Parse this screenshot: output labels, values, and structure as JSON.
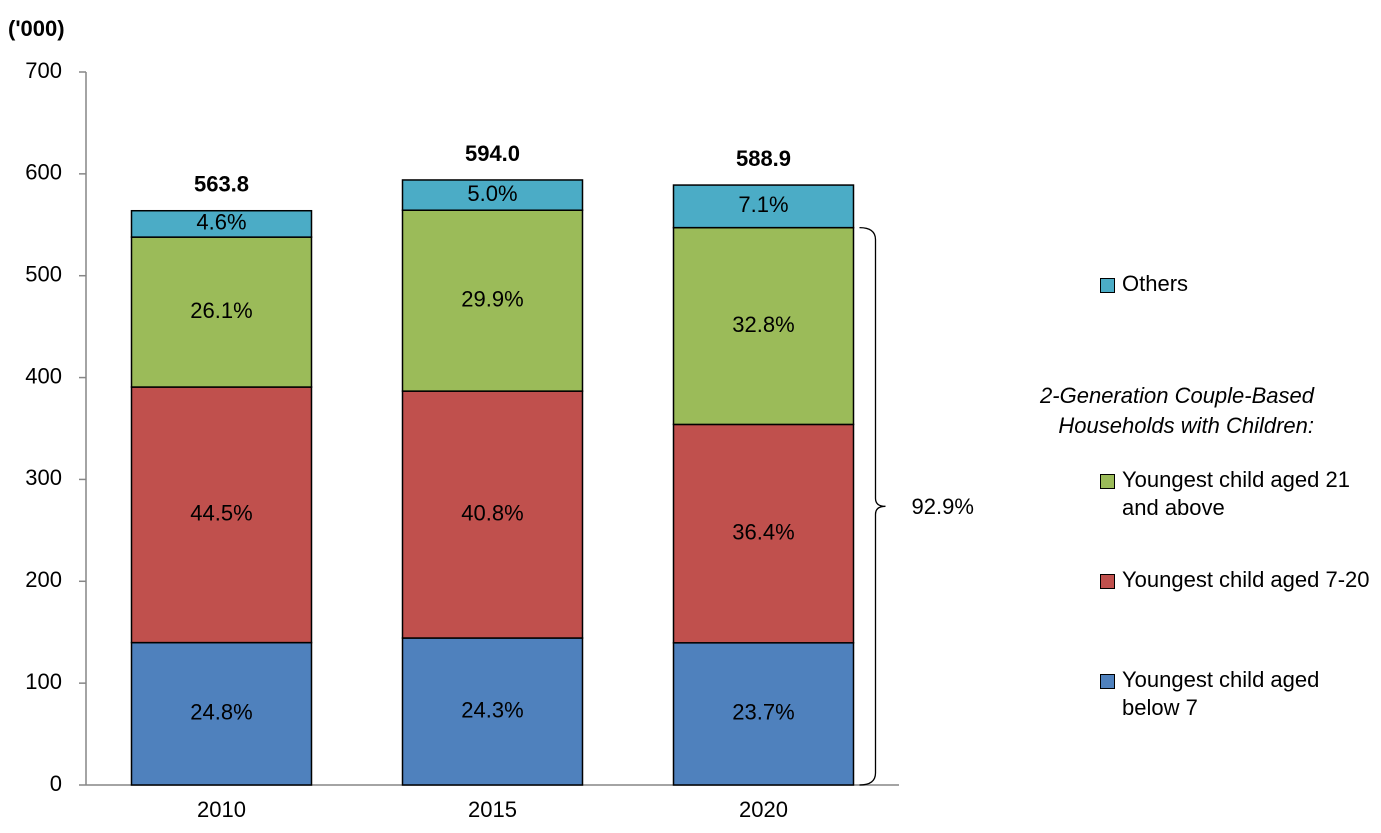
{
  "chart_data": {
    "type": "stacked_bar",
    "y_axis_label": "('000)",
    "categories": [
      "2010",
      "2015",
      "2020"
    ],
    "series": [
      {
        "name": "Youngest child aged below 7",
        "color": "#4f81bd",
        "values": [
          139.8,
          144.3,
          139.6
        ],
        "value_labels": [
          "24.8%",
          "24.3%",
          "23.7%"
        ]
      },
      {
        "name": "Youngest child aged 7-20",
        "color": "#c0504d",
        "values": [
          250.9,
          242.4,
          214.4
        ],
        "value_labels": [
          "44.5%",
          "40.8%",
          "36.4%"
        ]
      },
      {
        "name": "Youngest child aged 21 and above",
        "color": "#9bbb59",
        "values": [
          147.2,
          177.6,
          193.2
        ],
        "value_labels": [
          "26.1%",
          "29.9%",
          "32.8%"
        ]
      },
      {
        "name": "Others",
        "color": "#4bacc6",
        "values": [
          25.9,
          29.7,
          41.8
        ],
        "value_labels": [
          "4.6%",
          "5.0%",
          "7.1%"
        ]
      }
    ],
    "totals": [
      563.8,
      594,
      588.9
    ],
    "total_labels": [
      "563.8",
      "594.0",
      "588.9"
    ],
    "legend_title": "2-Generation Couple-Based Households with Children:",
    "annotation": "92.9%",
    "ylim": [
      0,
      700
    ],
    "yticks": [
      0,
      100,
      200,
      300,
      400,
      500,
      600,
      700
    ],
    "legend": "right"
  }
}
